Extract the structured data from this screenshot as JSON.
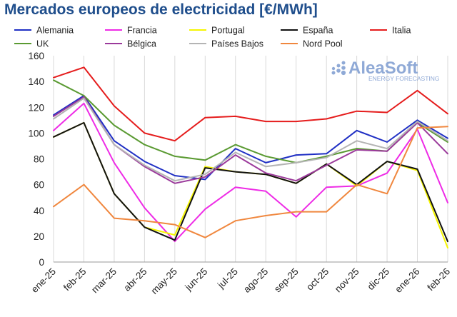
{
  "chart_data": {
    "type": "line",
    "title": "Mercados europeos de electricidad [€/MWh]",
    "xlabel": "",
    "ylabel": "",
    "ylim": [
      0,
      160
    ],
    "yticks": [
      0,
      20,
      40,
      60,
      80,
      100,
      120,
      140,
      160
    ],
    "grid": "vertical",
    "legend_position": "top",
    "categories": [
      "ene-25",
      "feb-25",
      "mar-25",
      "abr-25",
      "may-25",
      "jun-25",
      "jul-25",
      "ago-25",
      "sep-25",
      "oct-25",
      "nov-25",
      "dic-25",
      "ene-26",
      "feb-26"
    ],
    "series": [
      {
        "name": "Alemania",
        "color": "#1f2fc4",
        "values": [
          114,
          129,
          94,
          78,
          67,
          64,
          88,
          77,
          83,
          84,
          102,
          93,
          110,
          96
        ]
      },
      {
        "name": "Francia",
        "color": "#ee2be6",
        "values": [
          102,
          123,
          77,
          42,
          16,
          41,
          58,
          55,
          35,
          58,
          59,
          69,
          103,
          46
        ]
      },
      {
        "name": "Portugal",
        "color": "#f5f500",
        "values": [
          97,
          108,
          53,
          27,
          21,
          74,
          70,
          68,
          61,
          76,
          59,
          78,
          71,
          11
        ]
      },
      {
        "name": "España",
        "color": "#111111",
        "values": [
          97,
          108,
          53,
          27,
          17,
          73,
          70,
          68,
          61,
          76,
          60,
          78,
          72,
          16
        ]
      },
      {
        "name": "Italia",
        "color": "#e51c1c",
        "values": [
          143,
          151,
          121,
          100,
          94,
          112,
          113,
          109,
          109,
          111,
          117,
          116,
          133,
          115
        ]
      },
      {
        "name": "UK",
        "color": "#5a9a32",
        "values": [
          141,
          129,
          106,
          91,
          82,
          79,
          91,
          82,
          77,
          82,
          88,
          86,
          108,
          93
        ]
      },
      {
        "name": "Bélgica",
        "color": "#9b3a9b",
        "values": [
          113,
          128,
          91,
          74,
          61,
          66,
          83,
          69,
          63,
          75,
          87,
          86,
          108,
          84
        ]
      },
      {
        "name": "Países Bajos",
        "color": "#b4b4b4",
        "values": [
          111,
          127,
          91,
          75,
          63,
          68,
          85,
          74,
          77,
          81,
          94,
          88,
          109,
          94
        ]
      },
      {
        "name": "Nord Pool",
        "color": "#f0873e",
        "values": [
          43,
          60,
          34,
          32,
          29,
          19,
          32,
          36,
          39,
          39,
          60,
          53,
          104,
          105
        ]
      }
    ]
  },
  "watermark": {
    "brand": "AleaSoft",
    "tagline": "ENERGY FORECASTING",
    "color": "#8fa9d6"
  }
}
